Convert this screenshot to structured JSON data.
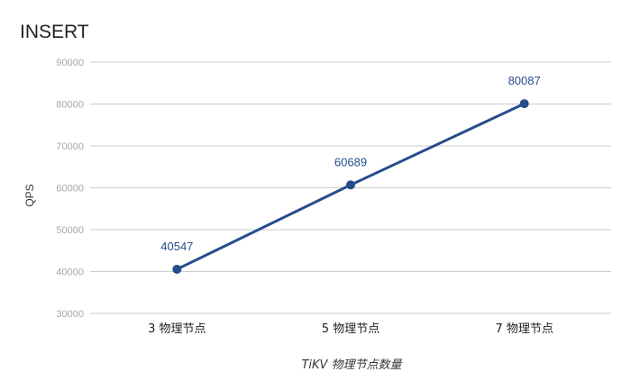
{
  "chart_data": {
    "type": "line",
    "title": "INSERT",
    "xlabel": "TiKV 物理节点数量",
    "ylabel": "QPS",
    "categories": [
      "3 物理节点",
      "5 物理节点",
      "7 物理节点"
    ],
    "series": [
      {
        "values": [
          40547,
          60689,
          80087
        ],
        "color": "#264d8c"
      }
    ],
    "ylim": [
      30000,
      90000
    ],
    "yticks": [
      "30000",
      "40000",
      "50000",
      "60000",
      "70000",
      "80000",
      "90000"
    ],
    "data_labels": [
      "40547",
      "60689",
      "80087"
    ],
    "grid": true,
    "legend": "none"
  }
}
